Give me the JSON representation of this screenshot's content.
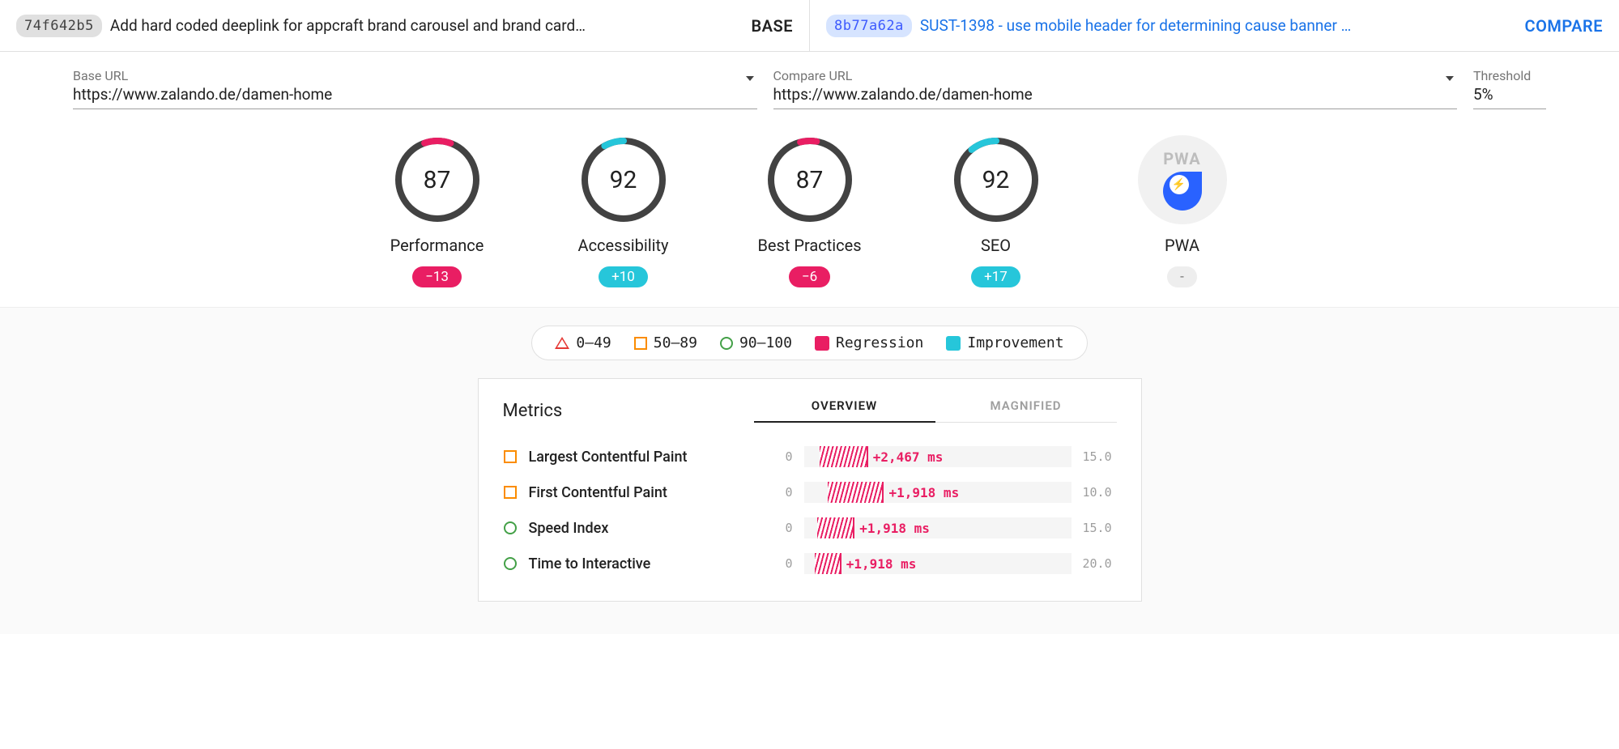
{
  "colors": {
    "regression": "#e91e63",
    "improvement": "#26c6da",
    "fail": "#e53935",
    "avg": "#fb8c00",
    "pass": "#43a047",
    "ring_track": "#424242",
    "text_muted": "#9e9e9e",
    "card_bg": "#ffffff",
    "page_alt_bg": "#fafafa"
  },
  "topbar": {
    "base": {
      "hash": "74f642b5",
      "title": "Add hard coded deeplink for appcraft brand carousel and brand card…",
      "role": "BASE"
    },
    "compare": {
      "hash": "8b77a62a",
      "title": "SUST-1398 - use mobile header for determining cause banner …",
      "role": "COMPARE"
    }
  },
  "urls": {
    "base": {
      "label": "Base URL",
      "value": "https://www.zalando.de/damen-home"
    },
    "compare": {
      "label": "Compare URL",
      "value": "https://www.zalando.de/damen-home"
    },
    "threshold": {
      "label": "Threshold",
      "value": "5%"
    }
  },
  "gauges": [
    {
      "key": "performance",
      "label": "Performance",
      "score": 87,
      "delta": "−13",
      "delta_kind": "regression",
      "arc_color": "#e91e63",
      "arc_start": 340,
      "arc_len": 40
    },
    {
      "key": "accessibility",
      "label": "Accessibility",
      "score": 92,
      "delta": "+10",
      "delta_kind": "improvement",
      "arc_color": "#26c6da",
      "arc_start": 330,
      "arc_len": 30
    },
    {
      "key": "best-practices",
      "label": "Best Practices",
      "score": 87,
      "delta": "−6",
      "delta_kind": "regression",
      "arc_color": "#e91e63",
      "arc_start": 345,
      "arc_len": 25
    },
    {
      "key": "seo",
      "label": "SEO",
      "score": 92,
      "delta": "+17",
      "delta_kind": "improvement",
      "arc_color": "#26c6da",
      "arc_start": 320,
      "arc_len": 40
    },
    {
      "key": "pwa",
      "label": "PWA",
      "score": null,
      "delta": "-",
      "delta_kind": "neutral",
      "is_pwa": true
    }
  ],
  "legend": {
    "range_fail": "0–49",
    "range_avg": "50–89",
    "range_pass": "90–100",
    "regression": "Regression",
    "improvement": "Improvement"
  },
  "metrics": {
    "title": "Metrics",
    "tabs": {
      "overview": "OVERVIEW",
      "magnified": "MAGNIFIED",
      "active": "overview"
    },
    "rows": [
      {
        "shape": "sq",
        "name": "Largest Contentful Paint",
        "min": "0",
        "max": "15.0",
        "bar_left_pct": 6,
        "bar_width_pct": 18,
        "delta": "+2,467 ms"
      },
      {
        "shape": "sq",
        "name": "First Contentful Paint",
        "min": "0",
        "max": "10.0",
        "bar_left_pct": 9,
        "bar_width_pct": 21,
        "delta": "+1,918 ms"
      },
      {
        "shape": "circ",
        "name": "Speed Index",
        "min": "0",
        "max": "15.0",
        "bar_left_pct": 5,
        "bar_width_pct": 14,
        "delta": "+1,918 ms"
      },
      {
        "shape": "circ",
        "name": "Time to Interactive",
        "min": "0",
        "max": "20.0",
        "bar_left_pct": 4,
        "bar_width_pct": 10,
        "delta": "+1,918 ms"
      }
    ]
  }
}
